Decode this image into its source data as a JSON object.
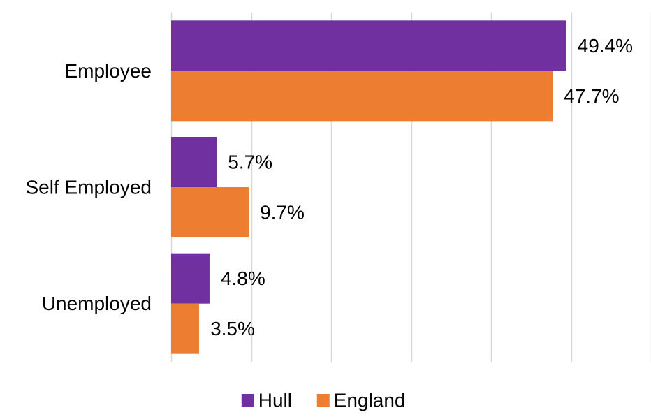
{
  "chart_data": {
    "type": "bar",
    "orientation": "horizontal",
    "categories": [
      "Employee",
      "Self Employed",
      "Unemployed"
    ],
    "series": [
      {
        "name": "Hull",
        "color": "#7030a0",
        "values": [
          49.4,
          5.7,
          4.8
        ],
        "labels": [
          "49.4%",
          "5.7%",
          "4.8%"
        ]
      },
      {
        "name": "England",
        "color": "#ed7d31",
        "values": [
          47.7,
          9.7,
          3.5
        ],
        "labels": [
          "47.7%",
          "9.7%",
          "3.5%"
        ]
      }
    ],
    "xlim": [
      0,
      60
    ],
    "grid": true,
    "legend_position": "bottom"
  }
}
